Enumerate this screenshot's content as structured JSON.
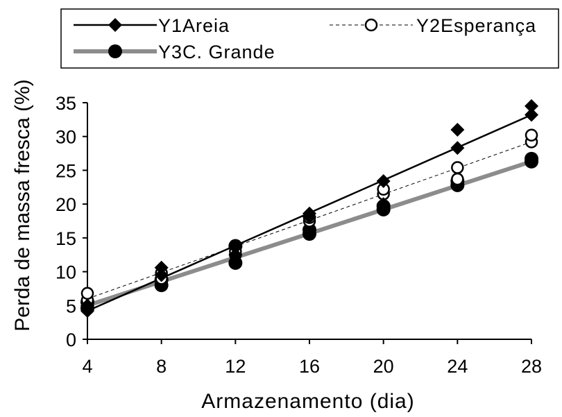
{
  "chart_data": {
    "type": "scatter",
    "title": "",
    "xlabel": "Armazenamento (dia)",
    "ylabel": "Perda de massa fresca (%)",
    "xlim": [
      4,
      28
    ],
    "ylim": [
      0,
      35
    ],
    "x_ticks": [
      4,
      8,
      12,
      16,
      20,
      24,
      28
    ],
    "y_ticks": [
      0,
      5,
      10,
      15,
      20,
      25,
      30,
      35
    ],
    "grid": false,
    "legend_position": "top",
    "series": [
      {
        "name": "Y1Areia",
        "marker": "diamond-filled",
        "line_style": "solid",
        "color": "#000000",
        "points": [
          [
            4,
            4.2
          ],
          [
            4,
            5.0
          ],
          [
            8,
            9.5
          ],
          [
            8,
            10.6
          ],
          [
            12,
            12.5
          ],
          [
            12,
            13.6
          ],
          [
            16,
            18.1
          ],
          [
            16,
            18.6
          ],
          [
            20,
            20.0
          ],
          [
            20,
            23.4
          ],
          [
            24,
            28.3
          ],
          [
            24,
            31.0
          ],
          [
            28,
            33.2
          ],
          [
            28,
            34.5
          ]
        ],
        "fit": [
          [
            4,
            4.2
          ],
          [
            28,
            33.2
          ]
        ]
      },
      {
        "name": "Y2Esperança",
        "marker": "circle-open",
        "line_style": "dashed",
        "color": "#000000",
        "points": [
          [
            4,
            5.8
          ],
          [
            4,
            6.8
          ],
          [
            8,
            9.0
          ],
          [
            8,
            9.8
          ],
          [
            12,
            12.5
          ],
          [
            12,
            13.0
          ],
          [
            16,
            17.5
          ],
          [
            16,
            18.0
          ],
          [
            20,
            21.5
          ],
          [
            20,
            22.2
          ],
          [
            24,
            23.7
          ],
          [
            24,
            25.4
          ],
          [
            28,
            29.2
          ],
          [
            28,
            30.2
          ]
        ],
        "fit": [
          [
            4,
            6.0
          ],
          [
            28,
            29.2
          ]
        ]
      },
      {
        "name": "Y3C. Grande",
        "marker": "circle-filled",
        "line_style": "solid-thick-gray",
        "color": "#8c8c8c",
        "points": [
          [
            4,
            4.6
          ],
          [
            4,
            5.5
          ],
          [
            8,
            8.0
          ],
          [
            8,
            8.8
          ],
          [
            12,
            11.3
          ],
          [
            12,
            13.8
          ],
          [
            16,
            15.6
          ],
          [
            16,
            16.2
          ],
          [
            20,
            19.2
          ],
          [
            20,
            19.7
          ],
          [
            24,
            22.8
          ],
          [
            24,
            23.4
          ],
          [
            28,
            26.3
          ],
          [
            28,
            26.7
          ]
        ],
        "fit": [
          [
            4,
            5.0
          ],
          [
            28,
            26.3
          ]
        ]
      }
    ]
  }
}
